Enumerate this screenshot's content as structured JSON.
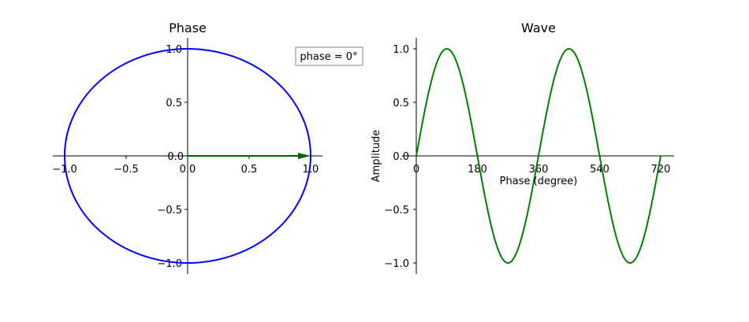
{
  "chart_data": [
    {
      "type": "line",
      "title": "Phase",
      "xlabel": "",
      "ylabel": "",
      "xlim": [
        -1.1,
        1.1
      ],
      "ylim": [
        -1.1,
        1.1
      ],
      "xticks": [
        -1.0,
        -0.5,
        0.0,
        0.5,
        1.0
      ],
      "yticks": [
        -1.0,
        -0.5,
        0.0,
        0.5,
        1.0
      ],
      "xtick_labels": [
        "−1.0",
        "−0.5",
        "0.0",
        "0.5",
        "1.0"
      ],
      "ytick_labels": [
        "−1.0",
        "−0.5",
        "0.0",
        "0.5",
        "1.0"
      ],
      "series": [
        {
          "kind": "circle",
          "center": [
            0,
            0
          ],
          "radius": 1.0,
          "color": "#0000ff"
        },
        {
          "kind": "arrow",
          "from": [
            0,
            0
          ],
          "to": [
            1.0,
            0
          ],
          "color": "#006400"
        }
      ],
      "annotation": "phase = 0°",
      "grid": false
    },
    {
      "type": "line",
      "title": "Wave",
      "xlabel": "Phase (degree)",
      "ylabel": "Amplitude",
      "xlim": [
        0,
        720
      ],
      "ylim": [
        -1.1,
        1.1
      ],
      "xticks": [
        0,
        180,
        360,
        540,
        720
      ],
      "yticks": [
        -1.0,
        -0.5,
        0.0,
        0.5,
        1.0
      ],
      "xtick_labels": [
        "0",
        "180",
        "360",
        "540",
        "720"
      ],
      "ytick_labels": [
        "−1.0",
        "−0.5",
        "0.0",
        "0.5",
        "1.0"
      ],
      "series": [
        {
          "kind": "function",
          "expression": "sin(x deg)",
          "x_range": [
            0,
            720
          ],
          "color": "#008000"
        }
      ],
      "grid": false
    }
  ]
}
